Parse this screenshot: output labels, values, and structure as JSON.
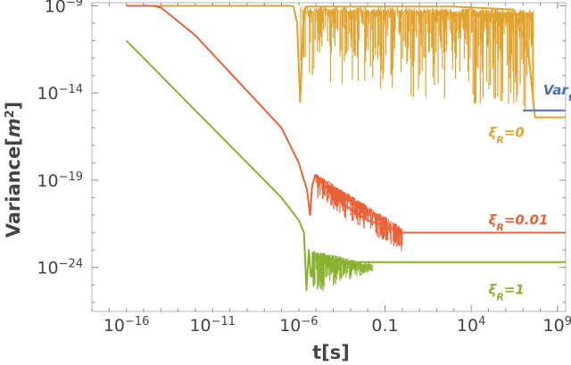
{
  "chart_data": {
    "type": "line",
    "xlabel": "t[s]",
    "ylabel": "Variance[m²]",
    "ylabel_base": "Variance[",
    "ylabel_unit": "m",
    "ylabel_sup": "2",
    "ylabel_close": "]",
    "x_scale": "log",
    "y_scale": "log",
    "xlim": [
      1e-18,
      3000000000.0
    ],
    "ylim": [
      3e-27,
      1.5e-09
    ],
    "grid": false,
    "x_ticks": [
      {
        "label_base": "10",
        "label_exp": "−16",
        "value": 1e-16
      },
      {
        "label_base": "10",
        "label_exp": "−11",
        "value": 1e-11
      },
      {
        "label_base": "10",
        "label_exp": "−6",
        "value": 1e-06
      },
      {
        "label": "0.1",
        "value": 0.1
      },
      {
        "label_base": "10",
        "label_exp": "4",
        "value": 10000.0
      },
      {
        "label_base": "10",
        "label_exp": "9",
        "value": 1000000000.0
      }
    ],
    "y_ticks": [
      {
        "label_base": "10",
        "label_exp": "−9",
        "value": 1e-09
      },
      {
        "label_base": "10",
        "label_exp": "−14",
        "value": 1e-14
      },
      {
        "label_base": "10",
        "label_exp": "−19",
        "value": 1e-19
      },
      {
        "label_base": "10",
        "label_exp": "−24",
        "value": 1e-24
      }
    ],
    "series": [
      {
        "key": "xi_0",
        "color": "#e1a22f",
        "points": [
          [
            1e-16,
            1e-09
          ],
          [
            3e-07,
            1e-09
          ],
          [
            5e-07,
            9e-10
          ],
          [
            8e-07,
            1e-10
          ],
          [
            1.2e-06,
            3e-15
          ],
          [
            1.8e-06,
            1e-10
          ],
          [
            2.5e-06,
            9e-10
          ],
          [
            1000.0,
            9e-10
          ],
          [
            3000000.0,
            6e-10
          ],
          [
            20000000.0,
            3e-12
          ],
          [
            50000000.0,
            4e-16
          ],
          [
            3000000000.0,
            4e-16
          ]
        ],
        "noise": {
          "x_from": 1.3e-06,
          "x_to": 40000000.0,
          "top_decades": [
            -9.05,
            -9.2
          ],
          "bottom_decades": [
            -13.2,
            -15.5
          ],
          "density": 320
        }
      },
      {
        "key": "xi_001",
        "color": "#e8623a",
        "points": [
          [
            1e-16,
            1e-09
          ],
          [
            3e-15,
            1e-09
          ],
          [
            1e-14,
            8e-10
          ],
          [
            1e-12,
            2e-11
          ],
          [
            1e-07,
            1e-16
          ],
          [
            1e-06,
            1e-18
          ],
          [
            2e-06,
            1e-19
          ],
          [
            3e-06,
            3e-20
          ],
          [
            4.5e-06,
            1e-21
          ],
          [
            6e-06,
            5e-20
          ],
          [
            9e-06,
            2e-19
          ],
          [
            2e-05,
            1e-19
          ],
          [
            0.0001,
            1e-20
          ],
          [
            0.01,
            5e-22
          ],
          [
            1,
            1e-22
          ],
          [
            3000000000.0,
            1e-22
          ]
        ],
        "noise": {
          "x_from": 1e-05,
          "x_to": 1,
          "top_decades": [
            -18.6,
            -21.7
          ],
          "bottom_decades": [
            -20.2,
            -23.1
          ],
          "density": 260
        }
      },
      {
        "key": "xi_1",
        "color": "#8ab231",
        "points": [
          [
            1e-16,
            1e-11
          ],
          [
            1e-07,
            1e-20
          ],
          [
            1e-06,
            5e-22
          ],
          [
            2e-06,
            1e-22
          ],
          [
            2.8e-06,
            5e-26
          ],
          [
            3.8e-06,
            1e-23
          ],
          [
            5e-06,
            3e-25
          ],
          [
            7e-06,
            2e-24
          ],
          [
            1e-05,
            3e-24
          ],
          [
            0.001,
            2e-24
          ],
          [
            0.03,
            2e-24
          ],
          [
            3000000000.0,
            2e-24
          ]
        ],
        "noise": {
          "x_from": 6e-06,
          "x_to": 0.02,
          "top_decades": [
            -23.0,
            -23.8
          ],
          "bottom_decades": [
            -25.6,
            -24.2
          ],
          "density": 200
        }
      },
      {
        "key": "var_t",
        "color": "#4a71b6",
        "points": [
          [
            10000000.0,
            1e-15
          ],
          [
            3000000000.0,
            1e-15
          ]
        ]
      }
    ],
    "annotations": [
      {
        "key": "xi_0",
        "sym": "ξ",
        "sub": "R",
        "value": "=0",
        "color": "#e1a22f",
        "at": [
          100000.0,
          3e-17
        ]
      },
      {
        "key": "xi_001",
        "sym": "ξ",
        "sub": "R",
        "value": "=0.01",
        "color": "#e8623a",
        "at": [
          100000.0,
          3e-22
        ]
      },
      {
        "key": "xi_1",
        "sym": "ξ",
        "sub": "R",
        "value": "=1",
        "color": "#8ab231",
        "at": [
          100000.0,
          3e-26
        ]
      },
      {
        "key": "var_t",
        "base": "Var",
        "sub": "t",
        "color": "#4a71b6",
        "at": [
          150000000.0,
          8e-15
        ]
      }
    ]
  }
}
